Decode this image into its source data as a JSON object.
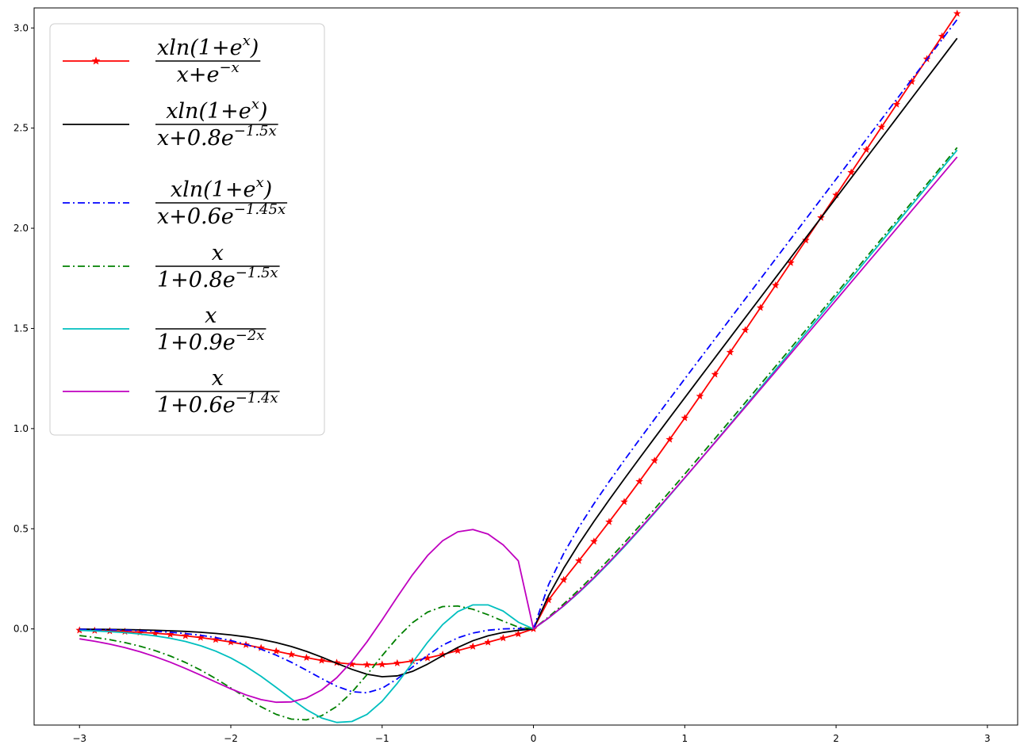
{
  "chart_data": {
    "type": "line",
    "title": "",
    "xlabel": "",
    "ylabel": "",
    "xlim": [
      -3.3,
      3.2
    ],
    "ylim": [
      -0.48,
      3.1
    ],
    "x_ticks": [
      -3,
      -2,
      -1,
      0,
      1,
      2,
      3
    ],
    "x_tick_labels": [
      "−3",
      "−2",
      "−1",
      "0",
      "1",
      "2",
      "3"
    ],
    "y_ticks": [
      0.0,
      0.5,
      1.0,
      1.5,
      2.0,
      2.5,
      3.0
    ],
    "y_tick_labels": [
      "0.0",
      "0.5",
      "1.0",
      "1.5",
      "2.0",
      "2.5",
      "3.0"
    ],
    "grid": false,
    "legend_placement": "upper-left",
    "x_start": -3.0,
    "x_step": 0.1,
    "series": [
      {
        "name": "xln(1+e^x) / (x+e^(−x))",
        "color": "#ff0000",
        "linestyle": "solid",
        "marker": "star",
        "legend_num": [
          "xln(1+e",
          "x",
          ")"
        ],
        "legend_den": [
          "x+e",
          "−x",
          ""
        ],
        "y": [
          -0.0064,
          -0.0082,
          -0.0105,
          -0.0134,
          -0.0171,
          -0.0217,
          -0.0274,
          -0.0345,
          -0.0432,
          -0.0535,
          -0.0657,
          -0.0795,
          -0.0948,
          -0.1111,
          -0.1276,
          -0.1434,
          -0.1574,
          -0.1686,
          -0.176,
          -0.179,
          -0.1772,
          -0.1708,
          -0.16,
          -0.1454,
          -0.1279,
          -0.1084,
          -0.0878,
          -0.0667,
          -0.0458,
          -0.0252,
          0.0,
          0.1443,
          0.2448,
          0.3403,
          0.4366,
          0.5343,
          0.6342,
          0.7362,
          0.8401,
          0.9458,
          1.053,
          1.1614,
          1.2708,
          1.381,
          1.4919,
          1.6033,
          1.7153,
          1.8276,
          1.9402,
          2.053,
          2.1659,
          2.2789,
          2.392,
          2.5052,
          2.6185,
          2.7318,
          2.8451,
          2.9585,
          3.0719
        ]
      },
      {
        "name": "xln(1+e^x) / (x+0.8e^(−1.5x))",
        "color": "#000000",
        "linestyle": "solid",
        "marker": "none",
        "legend_num": [
          "xln(1+e",
          "x",
          ")"
        ],
        "legend_den": [
          "x+0.8e",
          "−1.5x",
          ""
        ],
        "y": [
          -0.0012,
          -0.0018,
          -0.0025,
          -0.0035,
          -0.0049,
          -0.0067,
          -0.0092,
          -0.0124,
          -0.0168,
          -0.0225,
          -0.0299,
          -0.0396,
          -0.0521,
          -0.068,
          -0.0879,
          -0.1121,
          -0.1406,
          -0.1716,
          -0.2019,
          -0.2263,
          -0.2388,
          -0.2345,
          -0.2122,
          -0.176,
          -0.1334,
          -0.0926,
          -0.059,
          -0.0344,
          -0.0178,
          -0.0071,
          0.0,
          0.166,
          0.3027,
          0.4239,
          0.5364,
          0.6439,
          0.7484,
          0.8511,
          0.9527,
          1.0536,
          1.1541,
          1.2543,
          1.3543,
          1.4541,
          1.5539,
          1.6536,
          1.7532,
          1.8528,
          1.9524,
          2.052,
          2.1516,
          2.2512,
          2.3508,
          2.4503,
          2.5499,
          2.6495,
          2.7491,
          2.8487,
          2.9483
        ]
      },
      {
        "name": "xln(1+e^x) / (x+0.6e^(−1.45x))",
        "color": "#0000ff",
        "linestyle": "dashdot",
        "marker": "none",
        "legend_num": [
          "xln(1+e",
          "x",
          ")"
        ],
        "legend_den": [
          "x+0.6e",
          "−1.45x",
          ""
        ],
        "y": [
          -0.0021,
          -0.003,
          -0.0043,
          -0.0061,
          -0.0086,
          -0.0121,
          -0.0168,
          -0.0232,
          -0.0318,
          -0.0432,
          -0.0581,
          -0.0773,
          -0.1015,
          -0.1312,
          -0.1665,
          -0.2063,
          -0.248,
          -0.2864,
          -0.3133,
          -0.3189,
          -0.2963,
          -0.2494,
          -0.1905,
          -0.1316,
          -0.0815,
          -0.0447,
          -0.0206,
          -0.0066,
          0.0,
          0.002,
          0.0,
          0.2212,
          0.3766,
          0.5073,
          0.625,
          0.7353,
          0.8413,
          0.9448,
          1.0468,
          1.1478,
          1.2483,
          1.3483,
          1.4481,
          1.5478,
          1.6474,
          1.747,
          1.8466,
          1.9462,
          2.0458,
          2.1454,
          2.245,
          2.3446,
          2.4442,
          2.5438,
          2.6434,
          2.743,
          2.8426,
          2.9422,
          3.0418
        ]
      },
      {
        "name": "x / (1+0.8e^(−1.5x))",
        "color": "#008000",
        "linestyle": "dashdot",
        "marker": "none",
        "legend_num": [
          "x",
          "",
          ""
        ],
        "legend_den": [
          "1+0.8e",
          "−1.5x",
          ""
        ],
        "y": [
          -0.0332,
          -0.0423,
          -0.0538,
          -0.0682,
          -0.0862,
          -0.1084,
          -0.1353,
          -0.1675,
          -0.2052,
          -0.248,
          -0.2948,
          -0.343,
          -0.3888,
          -0.4266,
          -0.4502,
          -0.454,
          -0.4335,
          -0.387,
          -0.3163,
          -0.2284,
          -0.1337,
          -0.0443,
          0.0307,
          0.0838,
          0.1113,
          0.1143,
          0.098,
          0.0707,
          0.0388,
          0.0088,
          0.0,
          0.0595,
          0.1246,
          0.1948,
          0.2695,
          0.3478,
          0.4292,
          0.5129,
          0.5984,
          0.6852,
          0.773,
          0.8615,
          0.9506,
          1.0401,
          1.13,
          1.2202,
          1.3106,
          1.4012,
          1.4919,
          1.5828,
          1.6737,
          1.7647,
          1.8558,
          1.9469,
          2.038,
          2.1292,
          2.2204,
          2.3116,
          2.4028
        ]
      },
      {
        "name": "x / (1+0.9e^(−2x))",
        "color": "#00bfbf",
        "linestyle": "solid",
        "marker": "none",
        "legend_num": [
          "x",
          "",
          ""
        ],
        "legend_den": [
          "1+0.9e",
          "−2x",
          ""
        ],
        "y": [
          -0.0074,
          -0.0101,
          -0.0138,
          -0.0188,
          -0.0256,
          -0.0347,
          -0.0468,
          -0.0628,
          -0.0838,
          -0.1109,
          -0.1451,
          -0.1871,
          -0.2367,
          -0.2921,
          -0.3495,
          -0.403,
          -0.4448,
          -0.4669,
          -0.4622,
          -0.4267,
          -0.3612,
          -0.2719,
          -0.1695,
          -0.0672,
          0.0218,
          0.0865,
          0.1199,
          0.1199,
          0.0891,
          0.0337,
          0.0,
          0.0542,
          0.1147,
          0.1812,
          0.253,
          0.3294,
          0.4096,
          0.4928,
          0.5783,
          0.6654,
          0.7536,
          0.8427,
          0.9323,
          1.0224,
          1.1129,
          1.2036,
          1.2945,
          1.3855,
          1.4767,
          1.5679,
          1.6592,
          1.7505,
          1.8418,
          1.9331,
          2.0245,
          2.1158,
          2.2072,
          2.2986,
          2.39
        ]
      },
      {
        "name": "x / (1+0.6e^(−1.4x))",
        "color": "#bf00bf",
        "linestyle": "solid",
        "marker": "none",
        "legend_num": [
          "x",
          "",
          ""
        ],
        "legend_den": [
          "1+0.6e",
          "−1.4x",
          ""
        ],
        "y": [
          -0.0496,
          -0.0615,
          -0.076,
          -0.0934,
          -0.1142,
          -0.1385,
          -0.1663,
          -0.1973,
          -0.2307,
          -0.2653,
          -0.2991,
          -0.3295,
          -0.3531,
          -0.3661,
          -0.3645,
          -0.3449,
          -0.3049,
          -0.2437,
          -0.1624,
          -0.0644,
          0.0451,
          0.1594,
          0.2695,
          0.366,
          0.4401,
          0.4847,
          0.4961,
          0.4735,
          0.4196,
          0.3398,
          0.0,
          0.0547,
          0.1162,
          0.1837,
          0.2565,
          0.3335,
          0.414,
          0.497,
          0.5818,
          0.6679,
          0.7548,
          0.8423,
          0.9303,
          1.0186,
          1.1071,
          1.1959,
          1.2848,
          1.3738,
          1.4629,
          1.5521,
          1.6413,
          1.7306,
          1.8199,
          1.9092,
          1.9985,
          2.0879,
          2.1772,
          2.2666,
          2.3559
        ]
      }
    ]
  }
}
